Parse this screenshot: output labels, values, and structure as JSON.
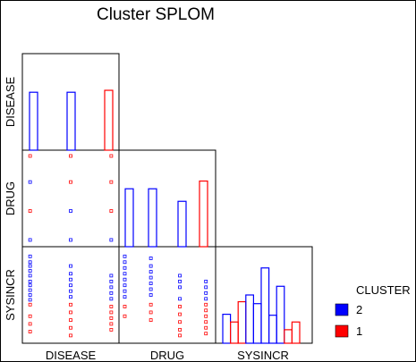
{
  "chart_data": {
    "type": "scatter",
    "title": "Cluster SPLOM",
    "variables": [
      "DISEASE",
      "DRUG",
      "SYSINCR"
    ],
    "legend": {
      "title": "CLUSTER",
      "placement": "right",
      "entries": [
        {
          "label": "2",
          "color": "#0000ff"
        },
        {
          "label": "1",
          "color": "#ff0000"
        }
      ]
    },
    "colors": {
      "cluster_2": "#0000ff",
      "cluster_1": "#ff0000",
      "frame": "#000000"
    },
    "grid": false,
    "histograms": {
      "DISEASE": [
        {
          "value": 1,
          "cluster": "2",
          "height": 0.6
        },
        {
          "value": 2,
          "cluster": "2",
          "height": 0.6
        },
        {
          "value": 3,
          "cluster": "1",
          "height": 0.62
        }
      ],
      "DRUG": [
        {
          "value": 1,
          "cluster": "2",
          "height": 0.6
        },
        {
          "value": 2,
          "cluster": "2",
          "height": 0.6
        },
        {
          "value": 3,
          "cluster": "2",
          "height": 0.47
        },
        {
          "value": 4,
          "cluster": "1",
          "height": 0.68
        }
      ],
      "SYSINCR": [
        {
          "bin": 1,
          "cluster": "2",
          "height": 0.3
        },
        {
          "bin": 2,
          "cluster": "1",
          "height": 0.22
        },
        {
          "bin": 3,
          "cluster": "1",
          "height": 0.43
        },
        {
          "bin": 4,
          "cluster": "2",
          "height": 0.5
        },
        {
          "bin": 5,
          "cluster": "2",
          "height": 0.41
        },
        {
          "bin": 6,
          "cluster": "2",
          "height": 0.78
        },
        {
          "bin": 7,
          "cluster": "2",
          "height": 0.29
        },
        {
          "bin": 8,
          "cluster": "2",
          "height": 0.59
        },
        {
          "bin": 9,
          "cluster": "1",
          "height": 0.14
        },
        {
          "bin": 10,
          "cluster": "1",
          "height": 0.22
        }
      ]
    },
    "scatter": {
      "DRUG_vs_DISEASE": [
        {
          "x": 0.08,
          "y": 0.06,
          "c": "1"
        },
        {
          "x": 0.5,
          "y": 0.06,
          "c": "1"
        },
        {
          "x": 0.92,
          "y": 0.06,
          "c": "1"
        },
        {
          "x": 0.08,
          "y": 0.33,
          "c": "2"
        },
        {
          "x": 0.5,
          "y": 0.33,
          "c": "1"
        },
        {
          "x": 0.92,
          "y": 0.33,
          "c": "1"
        },
        {
          "x": 0.08,
          "y": 0.63,
          "c": "1"
        },
        {
          "x": 0.5,
          "y": 0.63,
          "c": "2"
        },
        {
          "x": 0.92,
          "y": 0.63,
          "c": "1"
        },
        {
          "x": 0.08,
          "y": 0.93,
          "c": "2"
        },
        {
          "x": 0.5,
          "y": 0.93,
          "c": "2"
        },
        {
          "x": 0.92,
          "y": 0.93,
          "c": "2"
        }
      ],
      "SYSINCR_vs_DISEASE": [
        {
          "x": 0.08,
          "y": 0.1,
          "c": "2"
        },
        {
          "x": 0.08,
          "y": 0.16,
          "c": "2"
        },
        {
          "x": 0.08,
          "y": 0.2,
          "c": "2"
        },
        {
          "x": 0.08,
          "y": 0.25,
          "c": "2"
        },
        {
          "x": 0.08,
          "y": 0.3,
          "c": "2"
        },
        {
          "x": 0.08,
          "y": 0.36,
          "c": "2"
        },
        {
          "x": 0.08,
          "y": 0.4,
          "c": "2"
        },
        {
          "x": 0.08,
          "y": 0.45,
          "c": "2"
        },
        {
          "x": 0.08,
          "y": 0.5,
          "c": "2"
        },
        {
          "x": 0.08,
          "y": 0.55,
          "c": "2"
        },
        {
          "x": 0.08,
          "y": 0.6,
          "c": "1"
        },
        {
          "x": 0.08,
          "y": 0.72,
          "c": "1"
        },
        {
          "x": 0.08,
          "y": 0.8,
          "c": "1"
        },
        {
          "x": 0.08,
          "y": 0.88,
          "c": "1"
        },
        {
          "x": 0.5,
          "y": 0.2,
          "c": "2"
        },
        {
          "x": 0.5,
          "y": 0.28,
          "c": "2"
        },
        {
          "x": 0.5,
          "y": 0.34,
          "c": "2"
        },
        {
          "x": 0.5,
          "y": 0.4,
          "c": "2"
        },
        {
          "x": 0.5,
          "y": 0.46,
          "c": "2"
        },
        {
          "x": 0.5,
          "y": 0.52,
          "c": "2"
        },
        {
          "x": 0.5,
          "y": 0.6,
          "c": "1"
        },
        {
          "x": 0.5,
          "y": 0.68,
          "c": "1"
        },
        {
          "x": 0.5,
          "y": 0.76,
          "c": "1"
        },
        {
          "x": 0.5,
          "y": 0.84,
          "c": "1"
        },
        {
          "x": 0.5,
          "y": 0.92,
          "c": "1"
        },
        {
          "x": 0.92,
          "y": 0.3,
          "c": "2"
        },
        {
          "x": 0.92,
          "y": 0.36,
          "c": "2"
        },
        {
          "x": 0.92,
          "y": 0.42,
          "c": "2"
        },
        {
          "x": 0.92,
          "y": 0.48,
          "c": "2"
        },
        {
          "x": 0.92,
          "y": 0.54,
          "c": "2"
        },
        {
          "x": 0.92,
          "y": 0.62,
          "c": "1"
        },
        {
          "x": 0.92,
          "y": 0.68,
          "c": "1"
        },
        {
          "x": 0.92,
          "y": 0.74,
          "c": "1"
        },
        {
          "x": 0.92,
          "y": 0.8,
          "c": "1"
        },
        {
          "x": 0.92,
          "y": 0.86,
          "c": "1"
        }
      ],
      "SYSINCR_vs_DRUG": [
        {
          "x": 0.06,
          "y": 0.1,
          "c": "2"
        },
        {
          "x": 0.06,
          "y": 0.16,
          "c": "2"
        },
        {
          "x": 0.06,
          "y": 0.22,
          "c": "2"
        },
        {
          "x": 0.06,
          "y": 0.28,
          "c": "2"
        },
        {
          "x": 0.06,
          "y": 0.34,
          "c": "2"
        },
        {
          "x": 0.06,
          "y": 0.4,
          "c": "2"
        },
        {
          "x": 0.06,
          "y": 0.46,
          "c": "2"
        },
        {
          "x": 0.06,
          "y": 0.52,
          "c": "2"
        },
        {
          "x": 0.06,
          "y": 0.62,
          "c": "1"
        },
        {
          "x": 0.06,
          "y": 0.72,
          "c": "1"
        },
        {
          "x": 0.33,
          "y": 0.12,
          "c": "2"
        },
        {
          "x": 0.33,
          "y": 0.2,
          "c": "2"
        },
        {
          "x": 0.33,
          "y": 0.26,
          "c": "2"
        },
        {
          "x": 0.33,
          "y": 0.32,
          "c": "2"
        },
        {
          "x": 0.33,
          "y": 0.38,
          "c": "2"
        },
        {
          "x": 0.33,
          "y": 0.44,
          "c": "2"
        },
        {
          "x": 0.33,
          "y": 0.5,
          "c": "2"
        },
        {
          "x": 0.33,
          "y": 0.6,
          "c": "1"
        },
        {
          "x": 0.33,
          "y": 0.68,
          "c": "1"
        },
        {
          "x": 0.33,
          "y": 0.76,
          "c": "1"
        },
        {
          "x": 0.63,
          "y": 0.3,
          "c": "2"
        },
        {
          "x": 0.63,
          "y": 0.36,
          "c": "2"
        },
        {
          "x": 0.63,
          "y": 0.42,
          "c": "2"
        },
        {
          "x": 0.63,
          "y": 0.54,
          "c": "2"
        },
        {
          "x": 0.63,
          "y": 0.62,
          "c": "1"
        },
        {
          "x": 0.63,
          "y": 0.7,
          "c": "1"
        },
        {
          "x": 0.63,
          "y": 0.78,
          "c": "1"
        },
        {
          "x": 0.63,
          "y": 0.86,
          "c": "1"
        },
        {
          "x": 0.63,
          "y": 0.92,
          "c": "1"
        },
        {
          "x": 0.9,
          "y": 0.36,
          "c": "2"
        },
        {
          "x": 0.9,
          "y": 0.42,
          "c": "2"
        },
        {
          "x": 0.9,
          "y": 0.48,
          "c": "2"
        },
        {
          "x": 0.9,
          "y": 0.54,
          "c": "2"
        },
        {
          "x": 0.9,
          "y": 0.6,
          "c": "1"
        },
        {
          "x": 0.9,
          "y": 0.66,
          "c": "1"
        },
        {
          "x": 0.9,
          "y": 0.72,
          "c": "1"
        },
        {
          "x": 0.9,
          "y": 0.78,
          "c": "1"
        },
        {
          "x": 0.9,
          "y": 0.84,
          "c": "1"
        },
        {
          "x": 0.9,
          "y": 0.9,
          "c": "1"
        }
      ]
    }
  }
}
